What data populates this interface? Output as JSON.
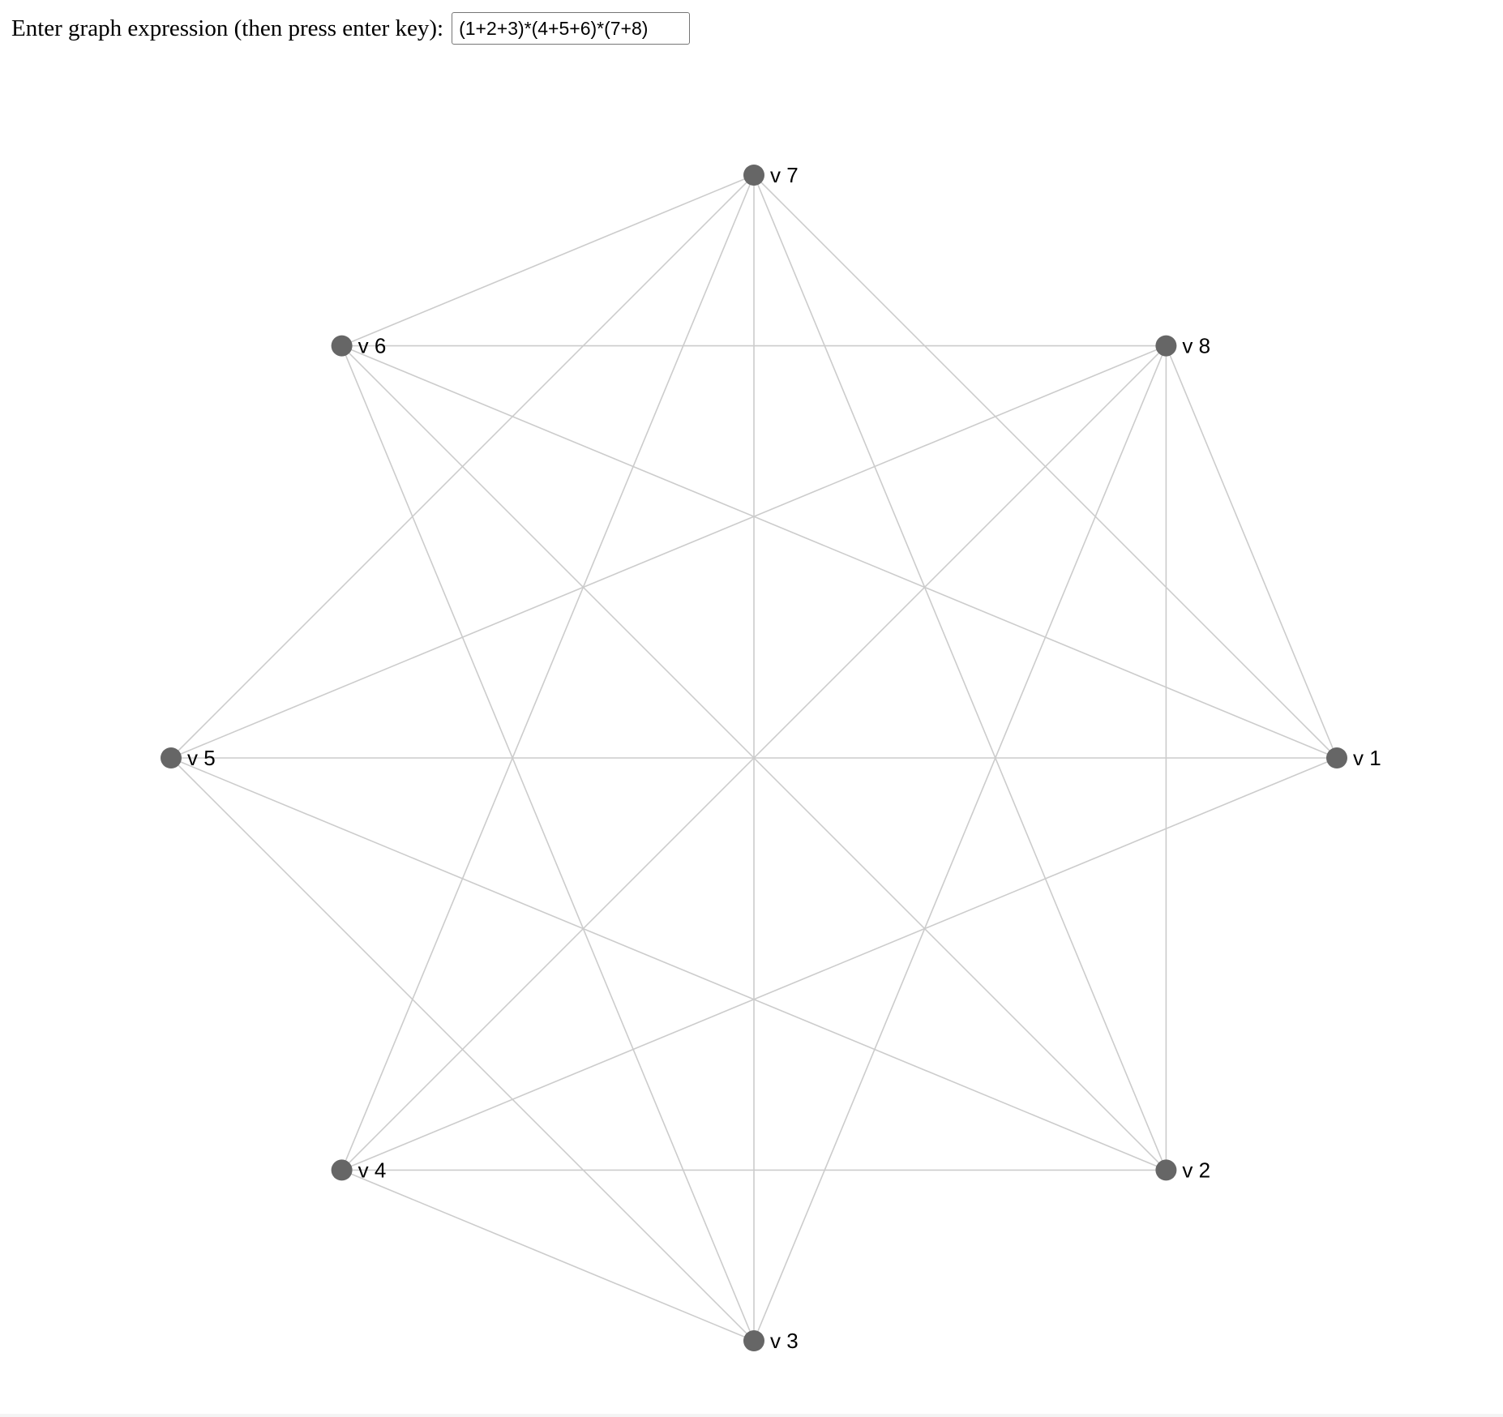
{
  "prompt": {
    "label": "Enter graph expression (then press enter key):",
    "expression_value": "(1+2+3)*(4+5+6)*(7+8)"
  },
  "graph": {
    "node_color": "#666666",
    "edge_color": "#cccccc",
    "nodes": [
      {
        "id": 1,
        "label": "v 1"
      },
      {
        "id": 2,
        "label": "v 2"
      },
      {
        "id": 3,
        "label": "v 3"
      },
      {
        "id": 4,
        "label": "v 4"
      },
      {
        "id": 5,
        "label": "v 5"
      },
      {
        "id": 6,
        "label": "v 6"
      },
      {
        "id": 7,
        "label": "v 7"
      },
      {
        "id": 8,
        "label": "v 8"
      }
    ],
    "groups": [
      [
        1,
        2,
        3
      ],
      [
        4,
        5,
        6
      ],
      [
        7,
        8
      ]
    ]
  }
}
